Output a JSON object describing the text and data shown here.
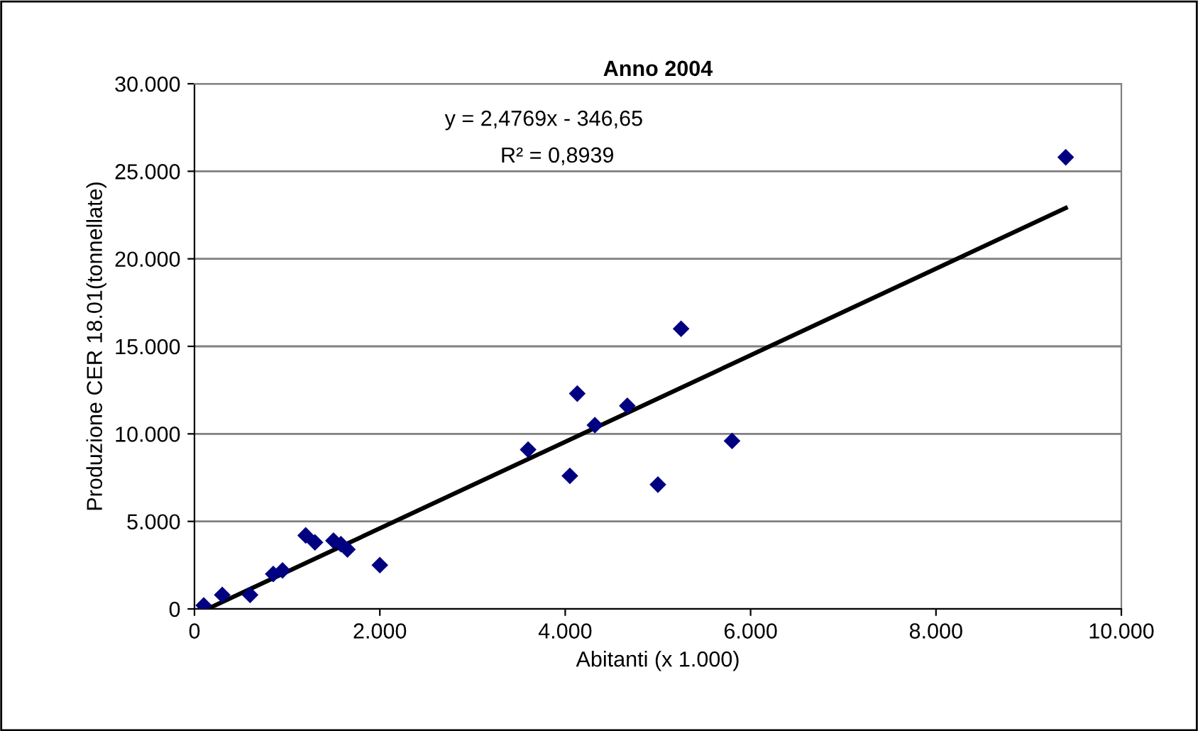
{
  "chart_data": {
    "type": "scatter",
    "title": "Anno 2004",
    "xlabel": "Abitanti (x 1.000)",
    "ylabel": "Produzione CER 18.01(tonnellate)",
    "annotations": [
      "y = 2,4769x - 346,65",
      "R² = 0,8939"
    ],
    "series": [
      {
        "color": "#000080",
        "marker": "diamond",
        "x": [
          100,
          300,
          600,
          850,
          950,
          1200,
          1300,
          1500,
          1580,
          1650,
          2000,
          3600,
          4050,
          4130,
          4320,
          4670,
          5000,
          5250,
          5800,
          9400
        ],
        "values": [
          200,
          800,
          800,
          2000,
          2200,
          4200,
          3800,
          3900,
          3700,
          3400,
          2500,
          9100,
          7600,
          12300,
          10500,
          11600,
          7100,
          16000,
          9600,
          25800
        ]
      },
      {
        "type": "line",
        "color": "#000000",
        "marker": "none",
        "line_style": "solid",
        "x": [
          140,
          9400
        ],
        "values": [
          0,
          22900
        ]
      }
    ],
    "xlim": [
      0,
      10000
    ],
    "xticks": [
      {
        "value": 0,
        "label": "0"
      },
      {
        "value": 2000,
        "label": "2.000"
      },
      {
        "value": 4000,
        "label": "4.000"
      },
      {
        "value": 6000,
        "label": "6.000"
      },
      {
        "value": 8000,
        "label": "8.000"
      },
      {
        "value": 10000,
        "label": "10.000"
      }
    ],
    "ylim": [
      0,
      30000
    ],
    "yticks": [
      {
        "value": 0,
        "label": "0"
      },
      {
        "value": 5000,
        "label": "5.000"
      },
      {
        "value": 10000,
        "label": "10.000"
      },
      {
        "value": 15000,
        "label": "15.000"
      },
      {
        "value": 20000,
        "label": "20.000"
      },
      {
        "value": 25000,
        "label": "25.000"
      },
      {
        "value": 30000,
        "label": "30.000"
      }
    ],
    "grid": "y",
    "legend": false
  }
}
